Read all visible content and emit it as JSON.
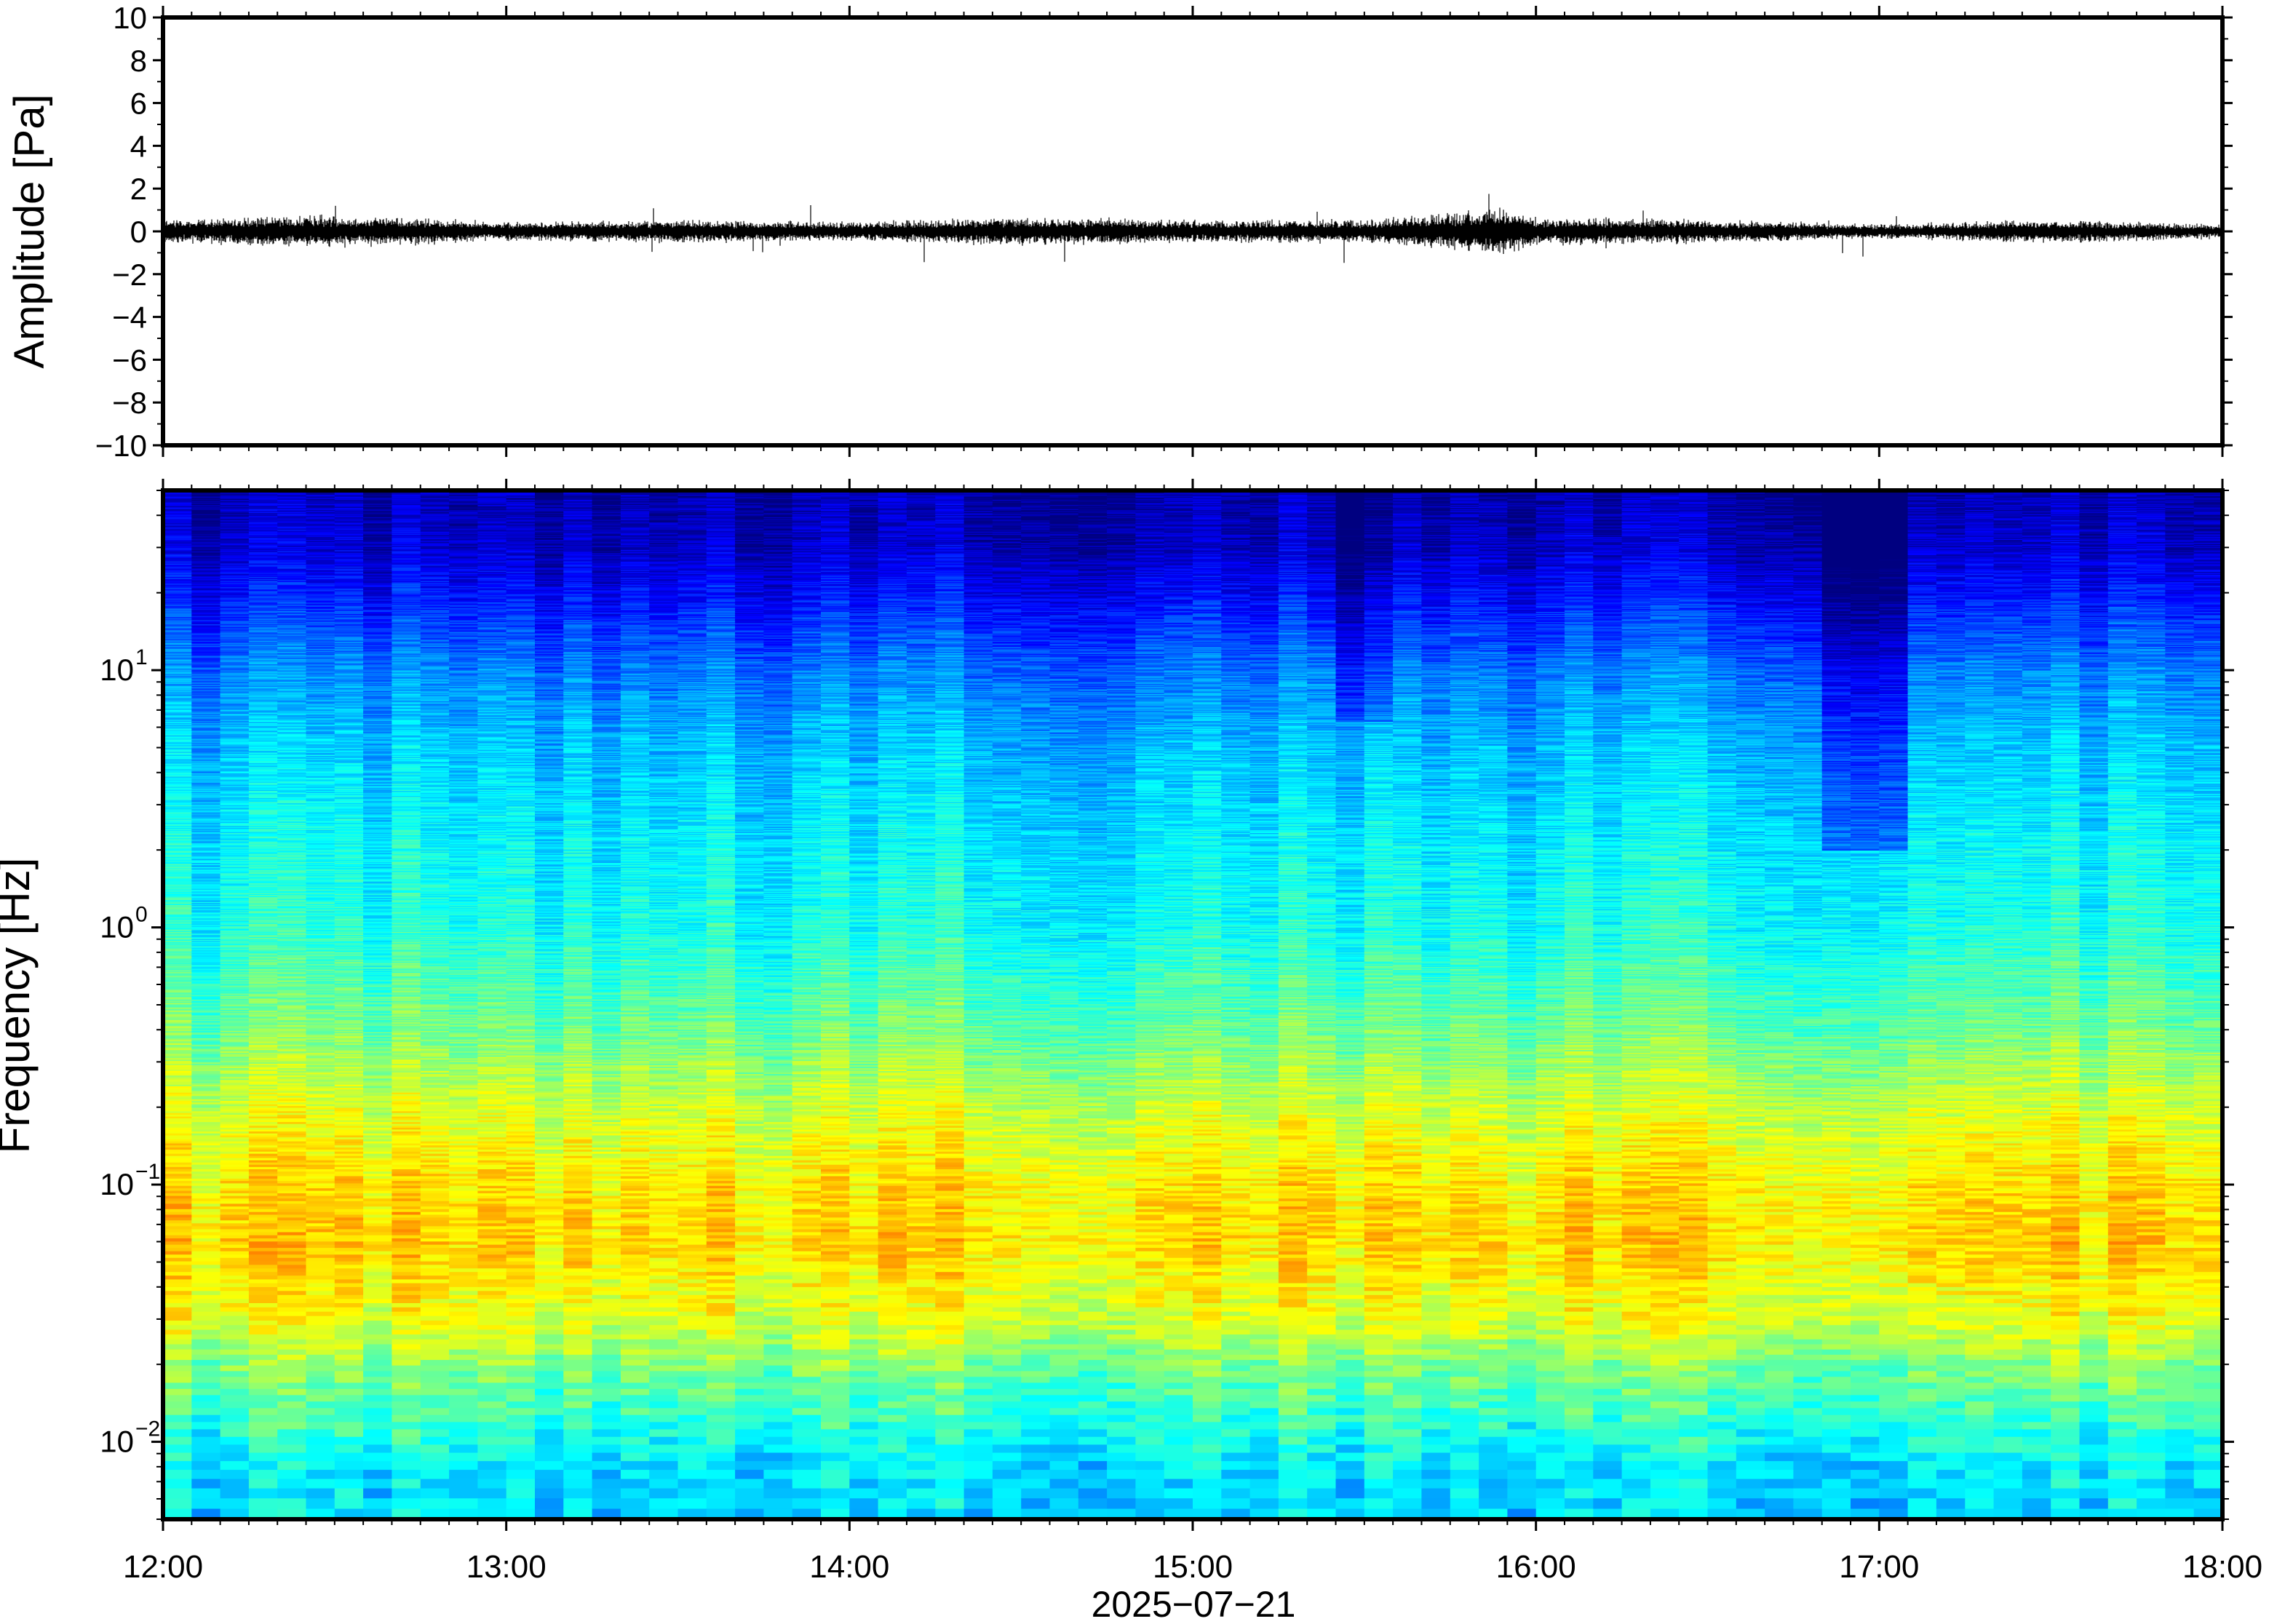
{
  "chart_data": [
    {
      "type": "line",
      "title": "",
      "xlabel": "",
      "ylabel": "Amplitude [Pa]",
      "ylim": [
        -10,
        10
      ],
      "yticks": [
        "10",
        "8",
        "6",
        "4",
        "2",
        "0",
        "−2",
        "−4",
        "−6",
        "−8",
        "−10"
      ],
      "ytick_values": [
        10,
        8,
        6,
        4,
        2,
        0,
        -2,
        -4,
        -6,
        -8,
        -10
      ],
      "xlim": [
        "12:00",
        "18:00"
      ],
      "series": [
        {
          "note_free_values_hours": [
            12.0,
            12.5,
            13.0,
            13.5,
            14.0,
            14.5,
            15.0,
            15.5,
            15.9,
            16.0,
            16.5,
            17.0,
            17.5,
            18.0
          ],
          "envelope_pa": [
            0.5,
            0.7,
            0.4,
            0.5,
            0.4,
            0.6,
            0.5,
            0.5,
            1.0,
            0.6,
            0.5,
            0.3,
            0.5,
            0.3
          ]
        }
      ],
      "line_color": "#000000",
      "grid": false
    },
    {
      "type": "heatmap",
      "title": "",
      "xlabel": "2025−07−21",
      "ylabel": "Frequency [Hz]",
      "yscale": "log",
      "ylim": [
        0.005,
        50
      ],
      "yticks": [
        {
          "value": 0.01,
          "base": "10",
          "exp": "−2"
        },
        {
          "value": 0.1,
          "base": "10",
          "exp": "−1"
        },
        {
          "value": 1,
          "base": "10",
          "exp": "0"
        },
        {
          "value": 10,
          "base": "10",
          "exp": "1"
        }
      ],
      "xticks": [
        "12:00",
        "13:00",
        "14:00",
        "15:00",
        "16:00",
        "17:00",
        "18:00"
      ],
      "xtick_hours": [
        12,
        13,
        14,
        15,
        16,
        17,
        18
      ],
      "colormap": "jet",
      "colormap_stops": [
        "#000080",
        "#0000ff",
        "#0080ff",
        "#00ffff",
        "#80ff80",
        "#ffff00",
        "#ff8000",
        "#ff0000"
      ],
      "profile_freq_hz": [
        0.005,
        0.008,
        0.012,
        0.018,
        0.03,
        0.06,
        0.1,
        0.2,
        0.4,
        1,
        2,
        5,
        10,
        20,
        30,
        50
      ],
      "profile_level": [
        0.38,
        0.4,
        0.48,
        0.55,
        0.68,
        0.76,
        0.74,
        0.66,
        0.55,
        0.45,
        0.42,
        0.36,
        0.28,
        0.15,
        0.08,
        0.05
      ],
      "grid": false
    }
  ]
}
